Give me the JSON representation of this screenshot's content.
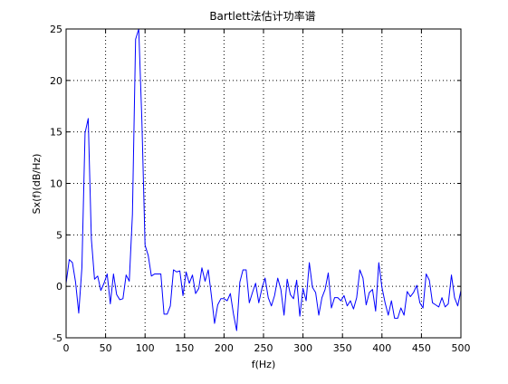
{
  "chart_data": {
    "type": "line",
    "title": "Bartlett法估计功率谱",
    "xlabel": "f(Hz)",
    "ylabel": "Sx(f)(dB/Hz)",
    "xlim": [
      0,
      500
    ],
    "ylim": [
      -5,
      25
    ],
    "xticks": [
      0,
      50,
      100,
      150,
      200,
      250,
      300,
      350,
      400,
      450,
      500
    ],
    "yticks": [
      -5,
      0,
      5,
      10,
      15,
      20,
      25
    ],
    "grid": "dotted",
    "legend": "none",
    "line_color": "#0000ff",
    "series": [
      {
        "x": [
          0,
          4,
          8,
          12,
          16,
          20,
          24,
          28,
          32,
          36,
          40,
          44,
          48,
          52,
          56,
          60,
          64,
          68,
          72,
          76,
          80,
          84,
          88,
          92,
          96,
          100,
          104,
          108,
          112,
          116,
          120,
          124,
          128,
          132,
          136,
          140,
          144,
          148,
          152,
          156,
          160,
          164,
          168,
          172,
          176,
          180,
          184,
          188,
          192,
          196,
          200,
          204,
          208,
          212,
          216,
          220,
          224,
          228,
          232,
          236,
          240,
          244,
          248,
          252,
          256,
          260,
          264,
          268,
          272,
          276,
          280,
          284,
          288,
          292,
          296,
          300,
          304,
          308,
          312,
          316,
          320,
          324,
          328,
          332,
          336,
          340,
          344,
          348,
          352,
          356,
          360,
          364,
          368,
          372,
          376,
          380,
          384,
          388,
          392,
          396,
          400,
          404,
          408,
          412,
          416,
          420,
          424,
          428,
          432,
          436,
          440,
          444,
          448,
          452,
          456,
          460,
          464,
          468,
          472,
          476,
          480,
          484,
          488,
          492,
          496,
          500
        ],
        "y": [
          0.3,
          2.6,
          2.3,
          0.4,
          -2.6,
          1.8,
          14.9,
          16.3,
          4.6,
          0.7,
          1.0,
          -0.4,
          0.3,
          1.2,
          -1.7,
          1.2,
          -0.8,
          -1.3,
          -1.2,
          1.1,
          0.5,
          7.0,
          24.0,
          25.0,
          16.0,
          4.0,
          3.0,
          1.0,
          1.2,
          1.2,
          1.2,
          -2.7,
          -2.7,
          -1.9,
          1.6,
          1.4,
          1.5,
          -0.9,
          1.4,
          0.3,
          1.1,
          -0.7,
          -0.2,
          1.8,
          0.5,
          1.6,
          -0.9,
          -3.6,
          -1.8,
          -1.2,
          -1.2,
          -1.4,
          -0.7,
          -2.7,
          -4.3,
          0.4,
          1.6,
          1.6,
          -1.6,
          -0.6,
          0.3,
          -1.6,
          -0.2,
          0.8,
          -1.1,
          -1.9,
          -0.9,
          0.8,
          -0.3,
          -2.8,
          0.7,
          -0.8,
          -1.2,
          0.6,
          -2.9,
          -0.2,
          -1.4,
          2.3,
          -0.1,
          -0.6,
          -2.8,
          -1.1,
          -0.3,
          1.3,
          -2.1,
          -1.1,
          -1.1,
          -1.4,
          -0.9,
          -1.9,
          -1.4,
          -2.2,
          -1.1,
          1.6,
          0.8,
          -1.8,
          -0.6,
          -0.3,
          -2.4,
          2.3,
          -0.1,
          -1.6,
          -2.8,
          -1.4,
          -3.1,
          -3.1,
          -2.1,
          -2.8,
          -0.5,
          -1.0,
          -0.6,
          0.1,
          -1.6,
          -2.1,
          1.2,
          0.6,
          -1.6,
          -1.8,
          -2.0,
          -1.1,
          -2.0,
          -1.7,
          1.1,
          -1.1,
          -1.9,
          -0.4
        ]
      }
    ]
  }
}
